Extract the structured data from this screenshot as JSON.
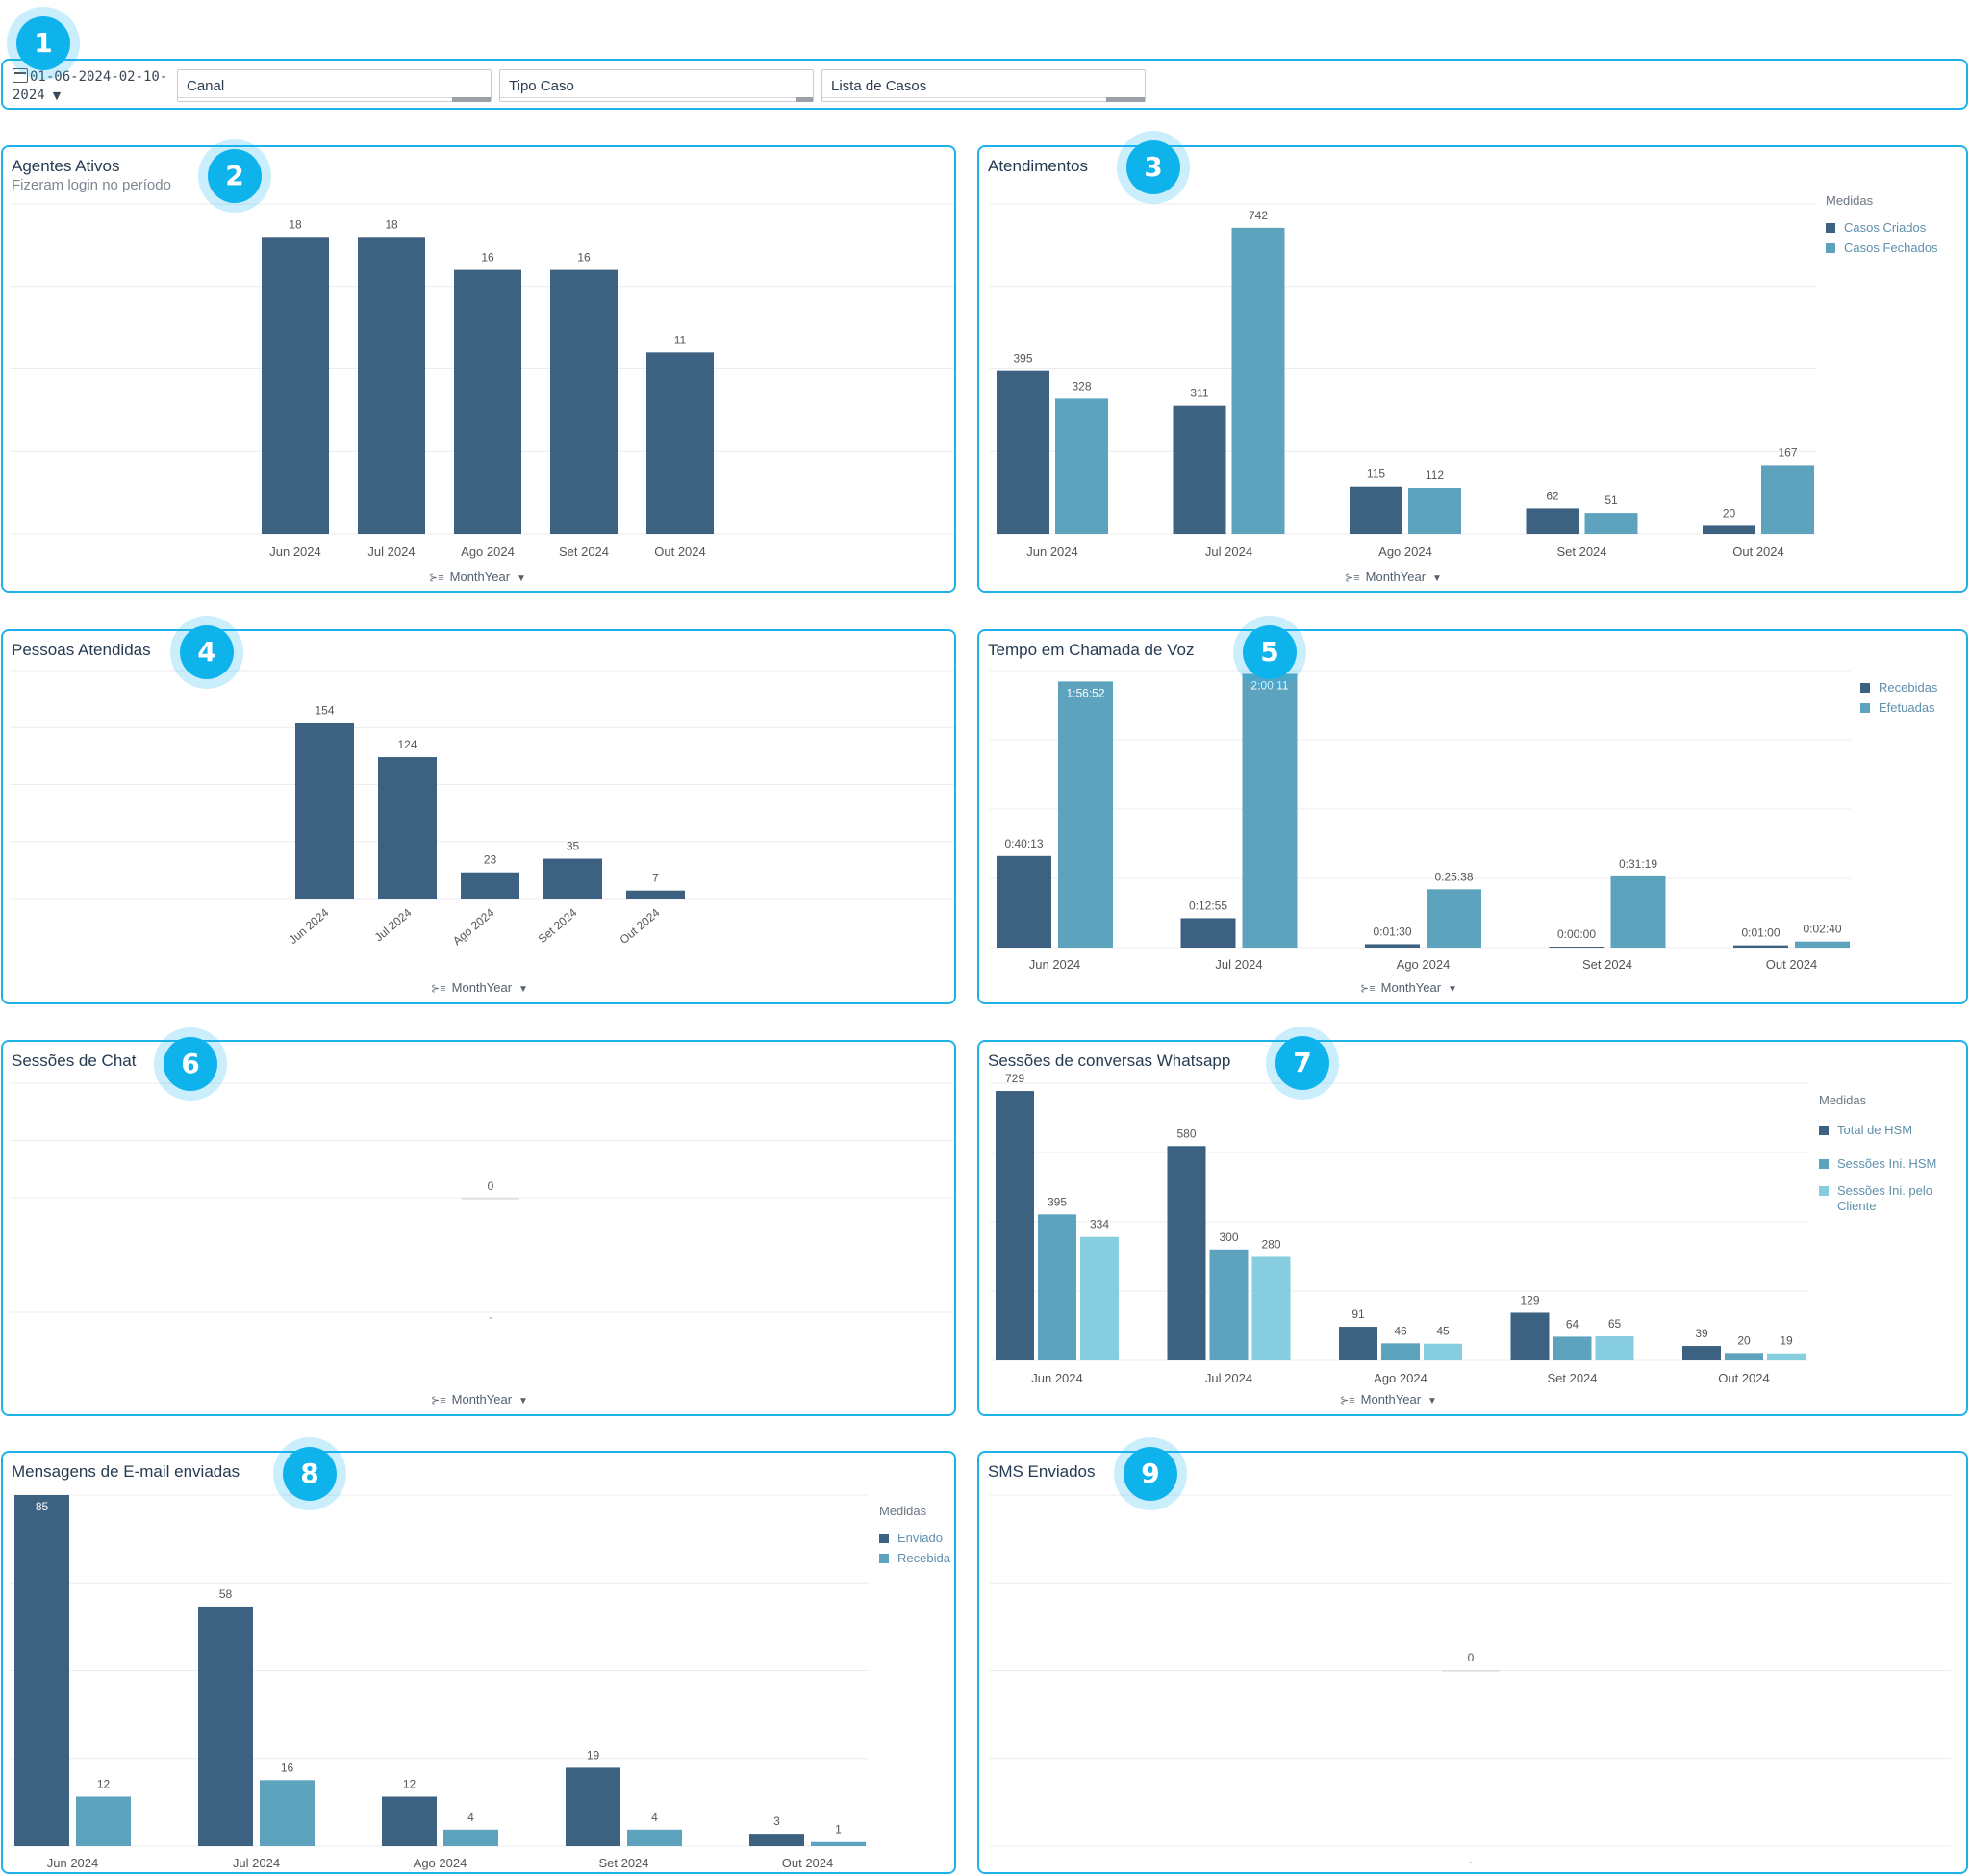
{
  "colors": {
    "dark": "#3d6180",
    "mid": "#5ea3be",
    "light": "#86cde0",
    "grid": "#ececec",
    "accent": "#1fb2e8"
  },
  "filters": {
    "date_line1": "01-06-2024-02-10-",
    "date_line2": "2024",
    "canal": "Canal",
    "tipo_caso": "Tipo Caso",
    "lista_casos": "Lista de Casos"
  },
  "badges": [
    "1",
    "2",
    "3",
    "4",
    "5",
    "6",
    "7",
    "8",
    "9"
  ],
  "axis_control_label": "MonthYear",
  "panels": {
    "agentes": {
      "title": "Agentes Ativos",
      "subtitle": "Fizeram login no período"
    },
    "atendimentos": {
      "title": "Atendimentos",
      "legend_title": "Medidas",
      "legend": [
        "Casos Criados",
        "Casos Fechados"
      ]
    },
    "pessoas": {
      "title": "Pessoas Atendidas"
    },
    "voz": {
      "title": "Tempo em Chamada de Voz",
      "legend": [
        "Recebidas",
        "Efetuadas"
      ]
    },
    "chat": {
      "title": "Sessões de Chat"
    },
    "whatsapp": {
      "title": "Sessões de conversas Whatsapp",
      "legend_title": "Medidas",
      "legend": [
        "Total de HSM",
        "Sessões Ini. HSM",
        "Sessões Ini. pelo Cliente"
      ]
    },
    "email": {
      "title": "Mensagens de E-mail enviadas",
      "legend_title": "Medidas",
      "legend": [
        "Enviado",
        "Recebida"
      ]
    },
    "sms": {
      "title": "SMS Enviados"
    }
  },
  "chart_data": [
    {
      "id": "agentes",
      "type": "bar",
      "categories": [
        "Jun 2024",
        "Jul 2024",
        "Ago 2024",
        "Set 2024",
        "Out 2024"
      ],
      "series": [
        {
          "values": [
            18,
            18,
            16,
            16,
            11
          ]
        }
      ],
      "ylim": [
        0,
        20
      ]
    },
    {
      "id": "atendimentos",
      "type": "bar",
      "categories": [
        "Jun 2024",
        "Jul 2024",
        "Ago 2024",
        "Set 2024",
        "Out 2024"
      ],
      "series": [
        {
          "name": "Casos Criados",
          "values": [
            395,
            311,
            115,
            62,
            20
          ]
        },
        {
          "name": "Casos Fechados",
          "values": [
            328,
            742,
            112,
            51,
            167
          ]
        }
      ],
      "ylim": [
        0,
        800
      ],
      "legend": "right"
    },
    {
      "id": "pessoas",
      "type": "bar",
      "categories": [
        "Jun 2024",
        "Jul 2024",
        "Ago 2024",
        "Set 2024",
        "Out 2024"
      ],
      "series": [
        {
          "values": [
            154,
            124,
            23,
            35,
            7
          ]
        }
      ],
      "ylim": [
        0,
        200
      ]
    },
    {
      "id": "voz",
      "type": "bar",
      "categories": [
        "Jun 2024",
        "Jul 2024",
        "Ago 2024",
        "Set 2024",
        "Out 2024"
      ],
      "series": [
        {
          "name": "Recebidas",
          "values": [
            2413,
            775,
            90,
            0,
            60
          ],
          "labels": [
            "0:40:13",
            "0:12:55",
            "0:01:30",
            "0:00:00",
            "0:01:00"
          ]
        },
        {
          "name": "Efetuadas",
          "values": [
            7012,
            7211,
            1538,
            1879,
            160
          ],
          "labels": [
            "1:56:52",
            "2:00:11",
            "0:25:38",
            "0:31:19",
            "0:02:40"
          ]
        }
      ],
      "ylim": [
        0,
        7300
      ],
      "legend": "right"
    },
    {
      "id": "chat",
      "type": "bar",
      "categories": [
        "-"
      ],
      "series": [
        {
          "values": [
            0
          ]
        }
      ]
    },
    {
      "id": "whatsapp",
      "type": "bar",
      "categories": [
        "Jun 2024",
        "Jul 2024",
        "Ago 2024",
        "Set 2024",
        "Out 2024"
      ],
      "series": [
        {
          "name": "Total de HSM",
          "values": [
            729,
            580,
            91,
            129,
            39
          ]
        },
        {
          "name": "Sessões Ini. HSM",
          "values": [
            395,
            300,
            46,
            64,
            20
          ]
        },
        {
          "name": "Sessões Ini. pelo Cliente",
          "values": [
            334,
            280,
            45,
            65,
            19
          ]
        }
      ],
      "ylim": [
        0,
        750
      ],
      "legend": "right"
    },
    {
      "id": "email",
      "type": "bar",
      "categories": [
        "Jun 2024",
        "Jul 2024",
        "Ago 2024",
        "Set 2024",
        "Out 2024"
      ],
      "series": [
        {
          "name": "Enviado",
          "values": [
            85,
            58,
            12,
            19,
            3
          ]
        },
        {
          "name": "Recebida",
          "values": [
            12,
            16,
            4,
            4,
            1
          ]
        }
      ],
      "ylim": [
        0,
        85
      ],
      "legend": "right"
    },
    {
      "id": "sms",
      "type": "bar",
      "categories": [
        "-"
      ],
      "series": [
        {
          "values": [
            0
          ]
        }
      ]
    }
  ]
}
